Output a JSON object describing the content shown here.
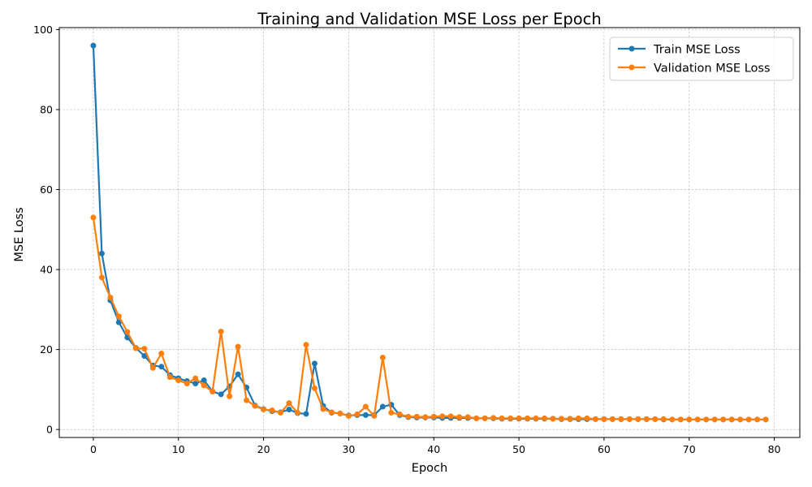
{
  "chart_data": {
    "type": "line",
    "title": "Training and Validation MSE Loss per Epoch",
    "xlabel": "Epoch",
    "ylabel": "MSE Loss",
    "xlim": [
      -4,
      83
    ],
    "ylim": [
      -2,
      100.5
    ],
    "xticks": [
      0,
      10,
      20,
      30,
      40,
      50,
      60,
      70,
      80
    ],
    "yticks": [
      0,
      20,
      40,
      60,
      80,
      100
    ],
    "grid": true,
    "legend_position": "top-right",
    "series": [
      {
        "name": "Train MSE Loss",
        "color": "#1f77b4",
        "x": [
          0,
          1,
          2,
          3,
          4,
          5,
          6,
          7,
          8,
          9,
          10,
          11,
          12,
          13,
          14,
          15,
          16,
          17,
          18,
          19,
          20,
          21,
          22,
          23,
          24,
          25,
          26,
          27,
          28,
          29,
          30,
          31,
          32,
          33,
          34,
          35,
          36,
          37,
          38,
          39,
          40,
          41,
          42,
          43,
          44,
          45,
          46,
          47,
          48,
          49,
          50,
          51,
          52,
          53,
          54,
          55,
          56,
          57,
          58,
          59,
          60,
          61,
          62,
          63,
          64,
          65,
          66,
          67,
          68,
          69,
          70,
          71,
          72,
          73,
          74,
          75,
          76,
          77,
          78,
          79
        ],
        "values": [
          96,
          44,
          32.3,
          26.8,
          23,
          20.4,
          18.4,
          16,
          15.7,
          13.6,
          12.8,
          12.1,
          11.5,
          12.3,
          9.5,
          8.8,
          10.8,
          13.8,
          10.5,
          6,
          5.1,
          4.6,
          4.3,
          5,
          4.1,
          3.9,
          16.5,
          5.9,
          4.2,
          4,
          3.5,
          3.6,
          3.6,
          3.6,
          5.7,
          6.2,
          3.6,
          3.1,
          3,
          3,
          3,
          2.9,
          2.9,
          2.9,
          2.9,
          2.8,
          2.8,
          2.8,
          2.7,
          2.7,
          2.7,
          2.7,
          2.7,
          2.7,
          2.7,
          2.6,
          2.6,
          2.6,
          2.6,
          2.6,
          2.6,
          2.6,
          2.6,
          2.6,
          2.6,
          2.6,
          2.6,
          2.5,
          2.5,
          2.5,
          2.5,
          2.5,
          2.5,
          2.5,
          2.5,
          2.5,
          2.5,
          2.5,
          2.5,
          2.5
        ]
      },
      {
        "name": "Validation MSE Loss",
        "color": "#ff7f0e",
        "x": [
          0,
          1,
          2,
          3,
          4,
          5,
          6,
          7,
          8,
          9,
          10,
          11,
          12,
          13,
          14,
          15,
          16,
          17,
          18,
          19,
          20,
          21,
          22,
          23,
          24,
          25,
          26,
          27,
          28,
          29,
          30,
          31,
          32,
          33,
          34,
          35,
          36,
          37,
          38,
          39,
          40,
          41,
          42,
          43,
          44,
          45,
          46,
          47,
          48,
          49,
          50,
          51,
          52,
          53,
          54,
          55,
          56,
          57,
          58,
          59,
          60,
          61,
          62,
          63,
          64,
          65,
          66,
          67,
          68,
          69,
          70,
          71,
          72,
          73,
          74,
          75,
          76,
          77,
          78,
          79
        ],
        "values": [
          53,
          38,
          33,
          28.3,
          24.4,
          20.3,
          20.2,
          15.4,
          19,
          13.1,
          12.3,
          11.5,
          12.8,
          11,
          9.5,
          24.5,
          8.3,
          20.7,
          7.3,
          5.9,
          5,
          4.8,
          4.2,
          6.6,
          4.2,
          21.2,
          10.3,
          5.1,
          4.3,
          4,
          3.4,
          3.8,
          5.7,
          3.4,
          18,
          4.2,
          3.8,
          3.2,
          3.2,
          3.1,
          3.2,
          3.3,
          3.3,
          3.1,
          3.1,
          2.8,
          2.8,
          2.9,
          2.8,
          2.8,
          2.8,
          2.8,
          2.8,
          2.8,
          2.7,
          2.7,
          2.7,
          2.8,
          2.8,
          2.6,
          2.6,
          2.6,
          2.6,
          2.6,
          2.6,
          2.6,
          2.6,
          2.6,
          2.5,
          2.5,
          2.5,
          2.5,
          2.5,
          2.5,
          2.5,
          2.5,
          2.5,
          2.5,
          2.5,
          2.5
        ]
      }
    ]
  }
}
